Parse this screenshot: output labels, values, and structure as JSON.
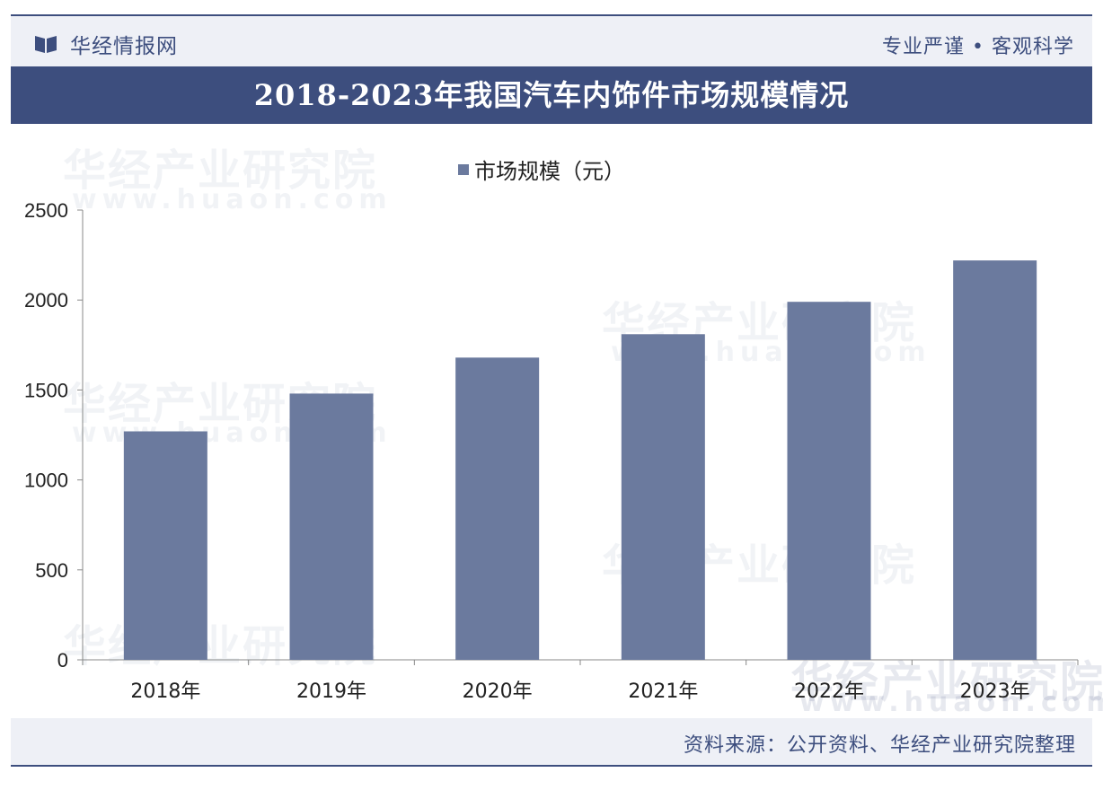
{
  "header": {
    "brand_name": "华经情报网",
    "slogan": "专业严谨 • 客观科学"
  },
  "chart_data": {
    "type": "bar",
    "title": "2018-2023年我国汽车内饰件市场规模情况",
    "categories": [
      "2018年",
      "2019年",
      "2020年",
      "2021年",
      "2022年",
      "2023年"
    ],
    "series": [
      {
        "name": "市场规模（元）",
        "values": [
          1270,
          1480,
          1680,
          1810,
          1990,
          2220
        ],
        "color": "#6b7a9e"
      }
    ],
    "ylim": [
      0,
      2500
    ],
    "yticks": [
      "0",
      "500",
      "1000",
      "1500",
      "2000",
      "2500"
    ],
    "ytick_values": [
      0,
      500,
      1000,
      1500,
      2000,
      2500
    ],
    "grid": false,
    "legend_position": "top-center"
  },
  "watermark": {
    "text_cn": "华经产业研究院",
    "text_en": "www.huaon.com"
  },
  "footer": {
    "source": "资料来源：公开资料、华经产业研究院整理"
  },
  "colors": {
    "brand": "#3d4e7e",
    "bar": "#6b7a9e",
    "header_bg": "#eef0f6"
  }
}
